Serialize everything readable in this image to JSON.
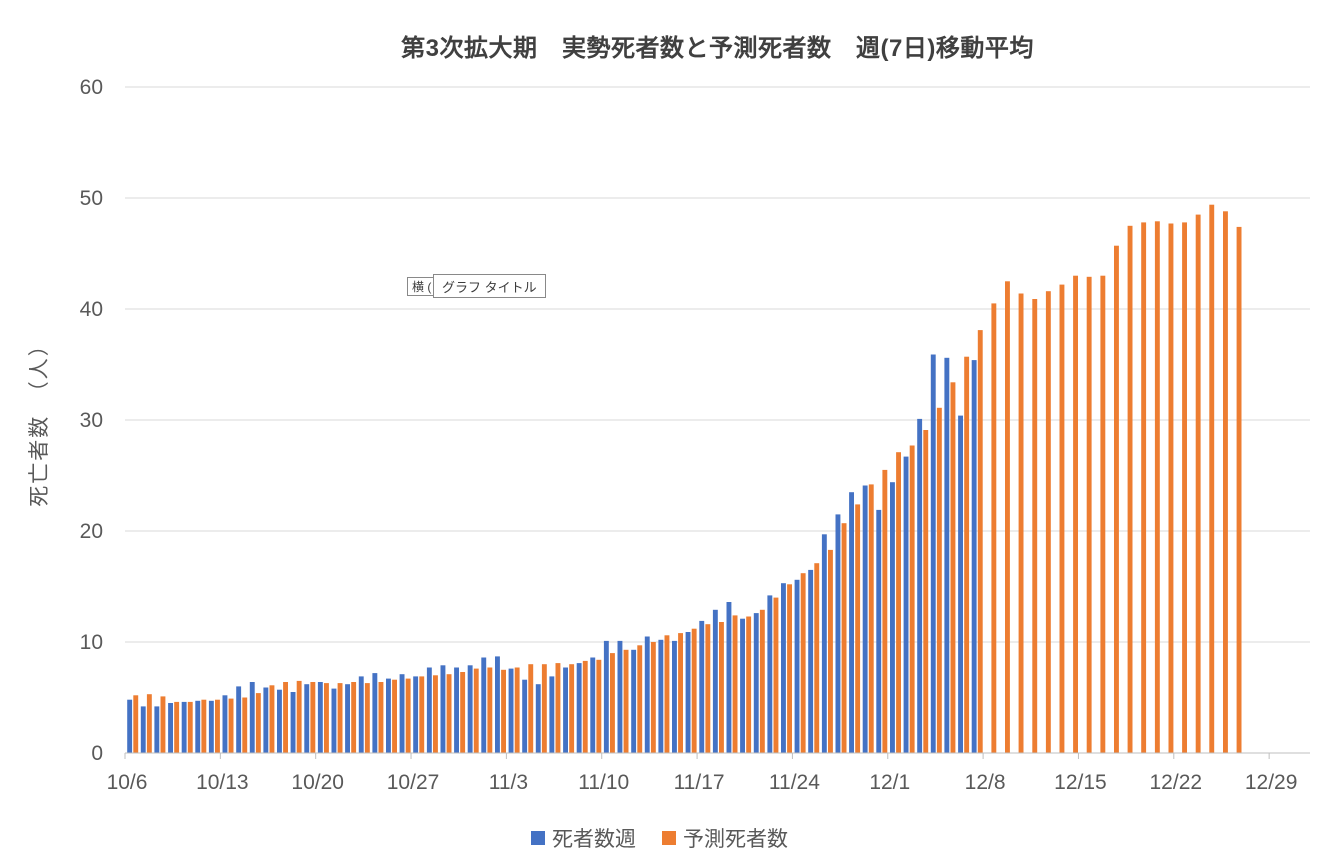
{
  "overlay": {
    "textbox_text": "横 (",
    "tooltip_text": "グラフ タイトル"
  },
  "chart_data": {
    "type": "bar",
    "title": "第3次拡大期　実勢死者数と予測死者数　週(7日)移動平均",
    "ylabel": "死亡者数　（人）",
    "xlabel": "",
    "ylim": [
      0,
      60
    ],
    "y_ticks": [
      0,
      10,
      20,
      30,
      40,
      50,
      60
    ],
    "grid": true,
    "legend_position": "bottom",
    "x_tick_labels": [
      "10/6",
      "10/13",
      "10/20",
      "10/27",
      "11/3",
      "11/10",
      "11/17",
      "11/24",
      "12/1",
      "12/8",
      "12/15",
      "12/22",
      "12/29"
    ],
    "x_tick_interval_days": 7,
    "axis_span_days": 87,
    "categories": [
      "10/6",
      "10/7",
      "10/8",
      "10/9",
      "10/10",
      "10/11",
      "10/12",
      "10/13",
      "10/14",
      "10/15",
      "10/16",
      "10/17",
      "10/18",
      "10/19",
      "10/20",
      "10/21",
      "10/22",
      "10/23",
      "10/24",
      "10/25",
      "10/26",
      "10/27",
      "10/28",
      "10/29",
      "10/30",
      "10/31",
      "11/1",
      "11/2",
      "11/3",
      "11/4",
      "11/5",
      "11/6",
      "11/7",
      "11/8",
      "11/9",
      "11/10",
      "11/11",
      "11/12",
      "11/13",
      "11/14",
      "11/15",
      "11/16",
      "11/17",
      "11/18",
      "11/19",
      "11/20",
      "11/21",
      "11/22",
      "11/23",
      "11/24",
      "11/25",
      "11/26",
      "11/27",
      "11/28",
      "11/29",
      "11/30",
      "12/1",
      "12/2",
      "12/3",
      "12/4",
      "12/5",
      "12/6",
      "12/7",
      "12/8",
      "12/9",
      "12/10",
      "12/11",
      "12/12",
      "12/13",
      "12/14",
      "12/15",
      "12/16",
      "12/17",
      "12/18",
      "12/19",
      "12/20",
      "12/21",
      "12/22",
      "12/23",
      "12/24",
      "12/25",
      "12/26"
    ],
    "series": [
      {
        "name": "死者数週",
        "color": "#4472C4",
        "values": [
          4.8,
          4.2,
          4.2,
          4.5,
          4.6,
          4.7,
          4.7,
          5.2,
          6.0,
          6.4,
          5.9,
          5.7,
          5.5,
          6.2,
          6.4,
          5.8,
          6.2,
          6.9,
          7.2,
          6.7,
          7.1,
          6.9,
          7.7,
          7.9,
          7.7,
          7.9,
          8.6,
          8.7,
          7.6,
          6.6,
          6.2,
          6.9,
          7.7,
          8.1,
          8.6,
          10.1,
          10.1,
          9.3,
          10.5,
          10.2,
          10.1,
          10.9,
          11.9,
          12.9,
          13.6,
          12.1,
          12.6,
          14.2,
          15.3,
          15.6,
          16.5,
          19.7,
          21.5,
          23.5,
          24.1,
          21.9,
          24.4,
          26.7,
          30.1,
          35.9,
          35.6,
          30.4,
          35.4
        ]
      },
      {
        "name": "予測死者数",
        "color": "#ED7D31",
        "values": [
          5.2,
          5.3,
          5.1,
          4.6,
          4.6,
          4.8,
          4.8,
          4.9,
          5.0,
          5.4,
          6.1,
          6.4,
          6.5,
          6.4,
          6.3,
          6.3,
          6.4,
          6.3,
          6.4,
          6.6,
          6.7,
          6.9,
          7.0,
          7.1,
          7.3,
          7.6,
          7.7,
          7.5,
          7.7,
          8.0,
          8.0,
          8.1,
          8.0,
          8.3,
          8.4,
          9.0,
          9.3,
          9.7,
          10.0,
          10.6,
          10.8,
          11.2,
          11.6,
          11.8,
          12.4,
          12.3,
          12.9,
          14.0,
          15.2,
          16.2,
          17.1,
          18.3,
          20.7,
          22.4,
          24.2,
          25.5,
          27.1,
          27.7,
          29.1,
          31.1,
          33.4,
          35.7,
          38.1,
          40.5,
          42.5,
          41.4,
          40.9,
          41.6,
          42.2,
          43.0,
          42.9,
          43.0,
          45.7,
          47.5,
          47.8,
          47.9,
          47.7,
          47.8,
          48.5,
          49.4,
          48.8,
          47.4
        ]
      }
    ],
    "colors": {
      "grid": "#D9D9D9",
      "axis": "#BFBFBF",
      "tick_text": "#595959",
      "title_text": "#404040"
    }
  }
}
